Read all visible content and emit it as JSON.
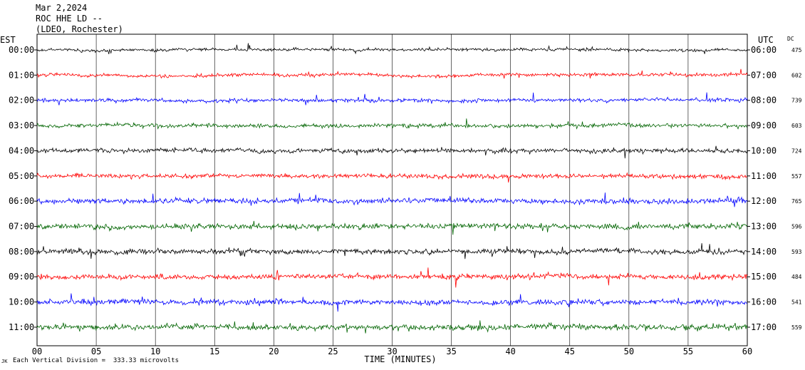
{
  "header": {
    "date": "Mar 2,2024",
    "station": "ROC HHE LD --",
    "network": "(LDEO, Rochester)"
  },
  "footer": {
    "scale_note": "Each Vertical Division =  333.33 microvolts",
    "mark": "JK"
  },
  "colors": {
    "cycle": [
      "#000000",
      "#ff0000",
      "#0000ff",
      "#006400"
    ],
    "grid": "#000000"
  },
  "chart_data": {
    "type": "line",
    "title": "",
    "xlabel": "TIME (MINUTES)",
    "ylabel": "",
    "xlim": [
      0,
      60
    ],
    "x_ticks": [
      "00",
      "05",
      "10",
      "15",
      "20",
      "25",
      "30",
      "35",
      "40",
      "45",
      "50",
      "55",
      "60"
    ],
    "left_axis_label": "EST",
    "right_axis_label": "UTC",
    "dc_label": "DC",
    "series": [
      {
        "est": "00:00",
        "utc": "06:00",
        "dc": "475",
        "color": "#000000",
        "activity": 0.55
      },
      {
        "est": "01:00",
        "utc": "07:00",
        "dc": "602",
        "color": "#ff0000",
        "activity": 0.6
      },
      {
        "est": "02:00",
        "utc": "08:00",
        "dc": "739",
        "color": "#0000ff",
        "activity": 0.7
      },
      {
        "est": "03:00",
        "utc": "09:00",
        "dc": "603",
        "color": "#006400",
        "activity": 0.75
      },
      {
        "est": "04:00",
        "utc": "10:00",
        "dc": "724",
        "color": "#000000",
        "activity": 0.8
      },
      {
        "est": "05:00",
        "utc": "11:00",
        "dc": "557",
        "color": "#ff0000",
        "activity": 0.85
      },
      {
        "est": "06:00",
        "utc": "12:00",
        "dc": "765",
        "color": "#0000ff",
        "activity": 1.0
      },
      {
        "est": "07:00",
        "utc": "13:00",
        "dc": "596",
        "color": "#006400",
        "activity": 1.0
      },
      {
        "est": "08:00",
        "utc": "14:00",
        "dc": "593",
        "color": "#000000",
        "activity": 0.95
      },
      {
        "est": "09:00",
        "utc": "15:00",
        "dc": "484",
        "color": "#ff0000",
        "activity": 1.0
      },
      {
        "est": "10:00",
        "utc": "16:00",
        "dc": "541",
        "color": "#0000ff",
        "activity": 1.0
      },
      {
        "est": "11:00",
        "utc": "17:00",
        "dc": "559",
        "color": "#006400",
        "activity": 1.05
      }
    ]
  }
}
